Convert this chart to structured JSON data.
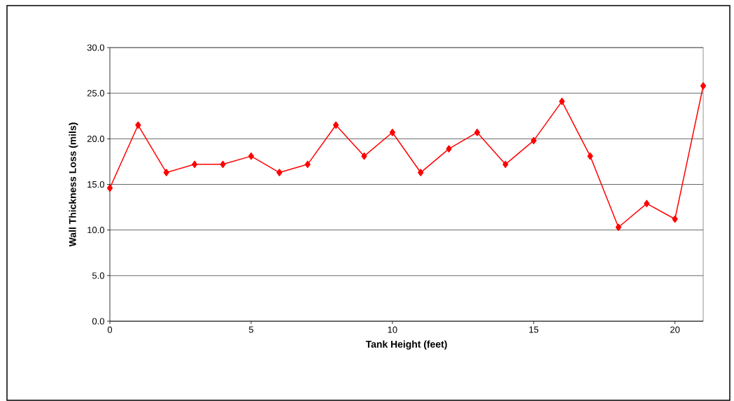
{
  "chart_data": {
    "type": "line",
    "xlabel": "Tank Height (feet)",
    "ylabel": "Wall Thickness Loss (mils)",
    "x": [
      0,
      1,
      2,
      3,
      4,
      5,
      6,
      7,
      8,
      9,
      10,
      11,
      12,
      13,
      14,
      15,
      16,
      17,
      18,
      19,
      20,
      21
    ],
    "series": [
      {
        "color": "#ff0000",
        "values": [
          14.6,
          21.5,
          16.3,
          17.2,
          17.2,
          18.1,
          16.3,
          17.2,
          21.5,
          18.1,
          20.7,
          16.3,
          18.9,
          20.7,
          17.2,
          19.8,
          24.1,
          18.1,
          10.3,
          12.9,
          11.2,
          25.8
        ]
      }
    ],
    "xlim": [
      0,
      21
    ],
    "xticks": [
      0,
      5,
      10,
      15,
      20
    ],
    "ylim": [
      0,
      30
    ],
    "yticks": [
      {
        "value": 0,
        "label": "0.0"
      },
      {
        "value": 5,
        "label": "5.0"
      },
      {
        "value": 10,
        "label": "10.0"
      },
      {
        "value": 15,
        "label": "15.0"
      },
      {
        "value": 20,
        "label": "20.0"
      },
      {
        "value": 25,
        "label": "25.0"
      },
      {
        "value": 30,
        "label": "30.0"
      }
    ],
    "grid": "y",
    "marker": "diamond",
    "line_style": "solid"
  }
}
